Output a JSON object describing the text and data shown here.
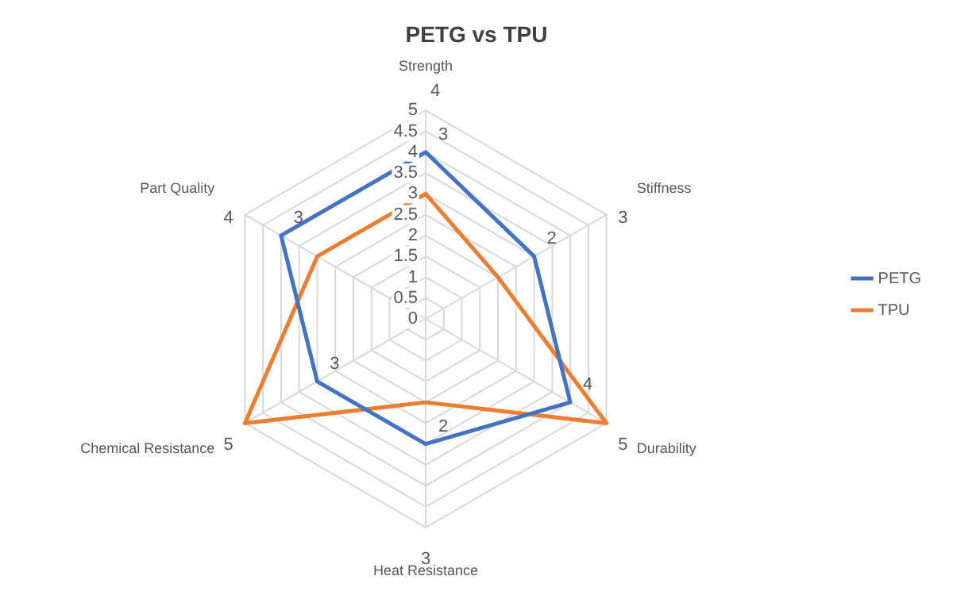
{
  "chart_data": {
    "type": "radar",
    "title": "PETG vs TPU",
    "categories": [
      "Strength",
      "Stiffness",
      "Durability",
      "Heat Resistance",
      "Chemical Resistance",
      "Part Quality"
    ],
    "series": [
      {
        "name": "PETG",
        "color": "#4472c4",
        "values": [
          4,
          3,
          4,
          3,
          3,
          4
        ]
      },
      {
        "name": "TPU",
        "color": "#ed7d31",
        "values": [
          3,
          2,
          5,
          2,
          5,
          3
        ]
      }
    ],
    "annotations": [
      {
        "text": "3",
        "x": "Strength"
      },
      {
        "text": "2",
        "x": "Stiffness"
      },
      {
        "text": "4",
        "x": "Durability"
      },
      {
        "text": "2",
        "x": "Heat Resistance"
      },
      {
        "text": "3",
        "x": "Chemical Resistance"
      },
      {
        "text": "3",
        "x": "Part Quality"
      },
      {
        "text": "4",
        "x": "Strength"
      },
      {
        "text": "3",
        "x": "Stiffness"
      },
      {
        "text": "5",
        "x": "Durability"
      },
      {
        "text": "3",
        "x": "Heat Resistance"
      },
      {
        "text": "5",
        "x": "Chemical Resistance"
      },
      {
        "text": "4",
        "x": "Part Quality"
      }
    ],
    "ylim": [
      0,
      5
    ],
    "yticks": [
      0,
      0.5,
      1,
      1.5,
      2,
      2.5,
      3,
      3.5,
      4,
      4.5,
      5
    ],
    "grid": true,
    "legend": "right",
    "marker": "none"
  }
}
